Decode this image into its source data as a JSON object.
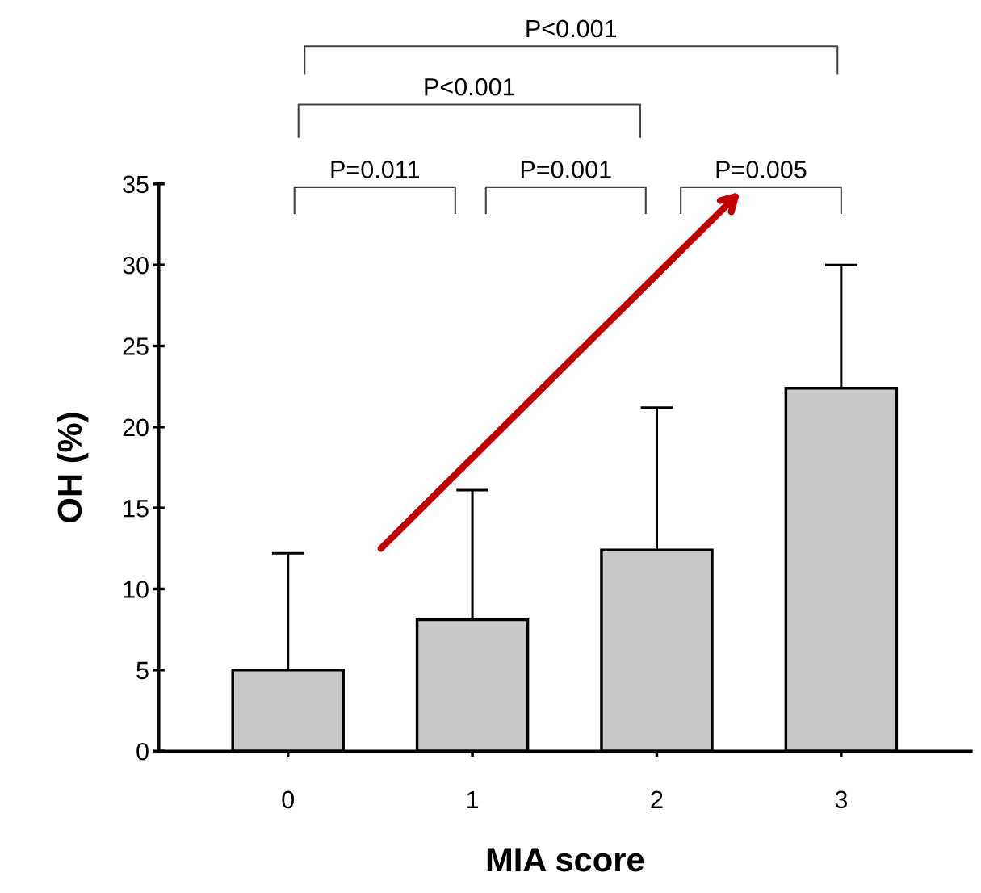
{
  "chart_data": {
    "type": "bar",
    "xlabel": "MIA score",
    "ylabel": "OH (%)",
    "categories": [
      "0",
      "1",
      "2",
      "3"
    ],
    "values": [
      5.0,
      8.1,
      12.4,
      22.4
    ],
    "errors": [
      [
        5.0,
        12.2
      ],
      [
        8.1,
        16.1
      ],
      [
        12.4,
        21.2
      ],
      [
        22.4,
        30.0
      ]
    ],
    "color": "#c8c8c8",
    "ylim": [
      0,
      35
    ],
    "yticks": [
      0,
      5,
      10,
      15,
      20,
      25,
      30,
      35
    ],
    "grid": false,
    "annotations": [
      "P=0.011",
      "P=0.001",
      "P=0.005",
      "P<0.001",
      "P<0.001"
    ]
  }
}
